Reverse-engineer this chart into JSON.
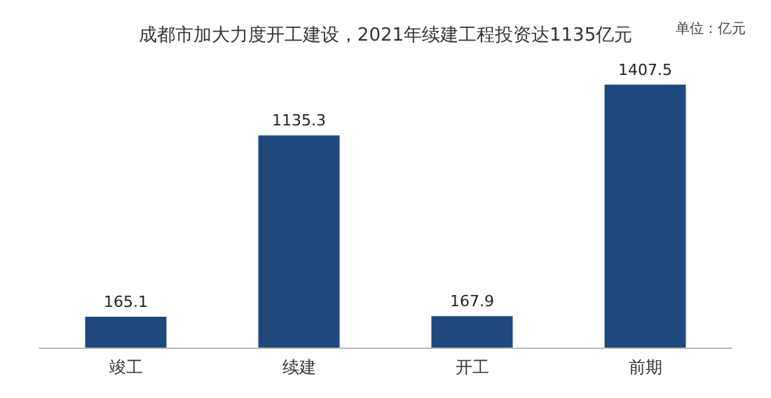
{
  "chart_data": {
    "type": "bar",
    "title": "成都市加大力度开工建设，2021年续建工程投资达1135亿元",
    "annotations": [
      "单位：亿元"
    ],
    "categories": [
      "竣工",
      "续建",
      "开工",
      "前期"
    ],
    "values": [
      165.1,
      1135.3,
      167.9,
      1407.5
    ],
    "color": "#1f497d",
    "data_labels": true
  }
}
